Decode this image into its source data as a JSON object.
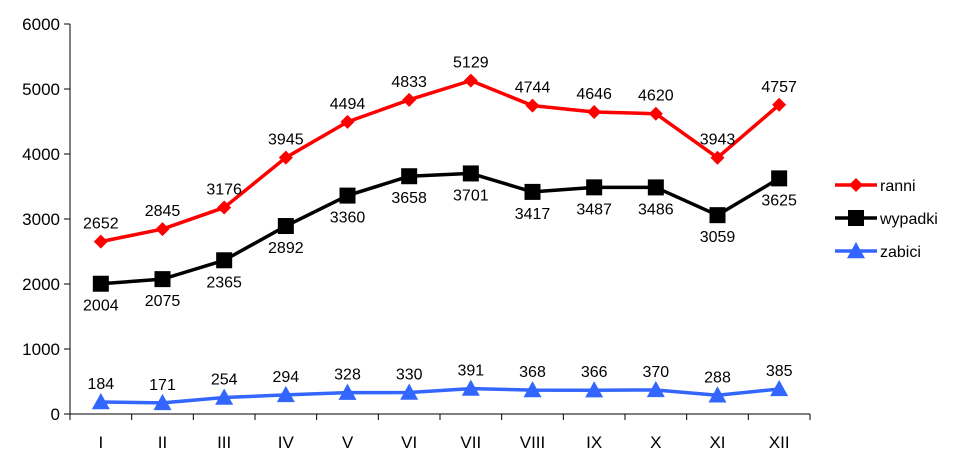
{
  "chart_data": {
    "type": "line",
    "title": "",
    "xlabel": "",
    "ylabel": "",
    "categories": [
      "I",
      "II",
      "III",
      "IV",
      "V",
      "VI",
      "VII",
      "VIII",
      "IX",
      "X",
      "XI",
      "XII"
    ],
    "ylim": [
      0,
      6000
    ],
    "yticks": [
      0,
      1000,
      2000,
      3000,
      4000,
      5000,
      6000
    ],
    "grid": false,
    "legend_position": "right",
    "series": [
      {
        "name": "ranni",
        "color": "#ff0000",
        "marker": "diamond",
        "values": [
          2652,
          2845,
          3176,
          3945,
          4494,
          4833,
          5129,
          4744,
          4646,
          4620,
          3943,
          4757
        ],
        "label_position": "above"
      },
      {
        "name": "wypadki",
        "color": "#000000",
        "marker": "square",
        "values": [
          2004,
          2075,
          2365,
          2892,
          3360,
          3658,
          3701,
          3417,
          3487,
          3486,
          3059,
          3625
        ],
        "label_position": "below"
      },
      {
        "name": "zabici",
        "color": "#3366ff",
        "marker": "triangle",
        "values": [
          184,
          171,
          254,
          294,
          328,
          330,
          391,
          368,
          366,
          370,
          288,
          385
        ],
        "label_position": "above"
      }
    ]
  }
}
